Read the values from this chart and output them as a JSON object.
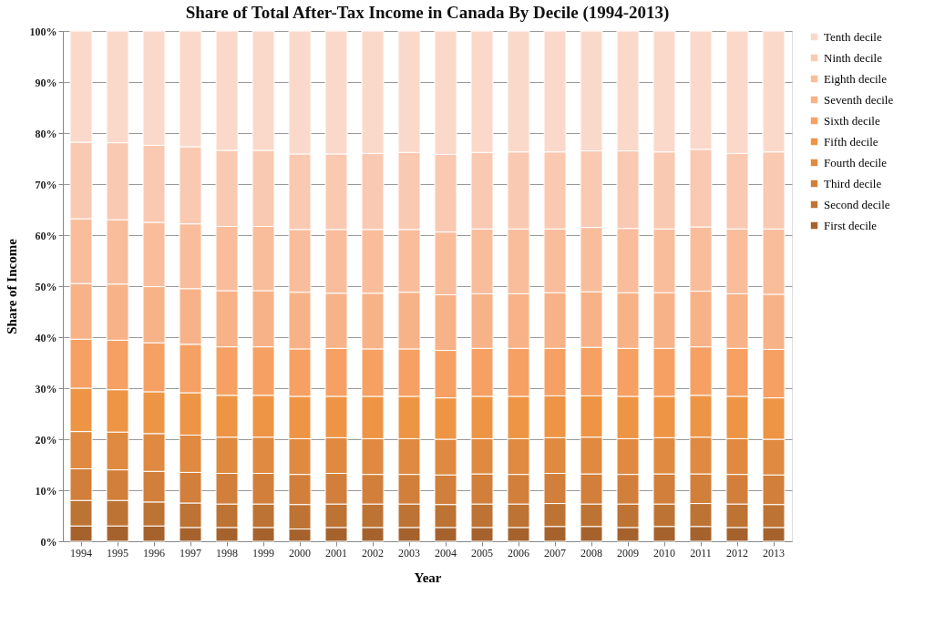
{
  "chart_data": {
    "type": "bar",
    "stacked": true,
    "title": "Share of  Total After-Tax Income in Canada By Decile (1994-2013)",
    "xlabel": "Year",
    "ylabel": "Share of Income",
    "categories": [
      "1994",
      "1995",
      "1996",
      "1997",
      "1998",
      "1999",
      "2000",
      "2001",
      "2002",
      "2003",
      "2004",
      "2005",
      "2006",
      "2007",
      "2008",
      "2009",
      "2010",
      "2011",
      "2012",
      "2013"
    ],
    "ylim": [
      0,
      100
    ],
    "yticks": [
      {
        "value": 0,
        "label": "0%"
      },
      {
        "value": 10,
        "label": "10%"
      },
      {
        "value": 20,
        "label": "20%"
      },
      {
        "value": 30,
        "label": "30%"
      },
      {
        "value": 40,
        "label": "40%"
      },
      {
        "value": 50,
        "label": "50%"
      },
      {
        "value": 60,
        "label": "60%"
      },
      {
        "value": 70,
        "label": "70%"
      },
      {
        "value": 80,
        "label": "80%"
      },
      {
        "value": 90,
        "label": "90%"
      },
      {
        "value": 100,
        "label": "100%"
      }
    ],
    "grid": "y",
    "legend": "right",
    "series": [
      {
        "name": "First decile",
        "color": "#a6622d",
        "values": [
          3.0,
          3.0,
          3.0,
          2.7,
          2.7,
          2.7,
          2.4,
          2.7,
          2.7,
          2.7,
          2.7,
          2.7,
          2.7,
          2.9,
          2.9,
          2.7,
          2.9,
          2.9,
          2.7,
          2.7
        ]
      },
      {
        "name": "Second decile",
        "color": "#bd7333",
        "values": [
          5.0,
          5.0,
          4.7,
          4.8,
          4.6,
          4.6,
          4.8,
          4.6,
          4.6,
          4.6,
          4.5,
          4.6,
          4.6,
          4.5,
          4.4,
          4.6,
          4.4,
          4.5,
          4.6,
          4.5
        ]
      },
      {
        "name": "Third decile",
        "color": "#d27f3b",
        "values": [
          6.2,
          6.0,
          6.0,
          6.0,
          6.0,
          6.0,
          5.9,
          6.0,
          5.8,
          5.8,
          5.8,
          5.9,
          5.8,
          5.9,
          5.9,
          5.8,
          5.9,
          5.8,
          5.8,
          5.8
        ]
      },
      {
        "name": "Fourth decile",
        "color": "#df8a40",
        "values": [
          7.3,
          7.4,
          7.4,
          7.3,
          7.1,
          7.1,
          7.0,
          7.0,
          7.0,
          7.0,
          7.0,
          6.9,
          7.0,
          7.0,
          7.2,
          7.0,
          7.1,
          7.2,
          7.0,
          7.0
        ]
      },
      {
        "name": "Fifth decile",
        "color": "#ee9545",
        "values": [
          8.5,
          8.3,
          8.2,
          8.3,
          8.2,
          8.2,
          8.3,
          8.1,
          8.3,
          8.3,
          8.1,
          8.3,
          8.3,
          8.2,
          8.1,
          8.3,
          8.1,
          8.2,
          8.3,
          8.1
        ]
      },
      {
        "name": "Sixth decile",
        "color": "#f6a064",
        "values": [
          9.6,
          9.7,
          9.6,
          9.5,
          9.5,
          9.5,
          9.3,
          9.4,
          9.3,
          9.3,
          9.3,
          9.4,
          9.4,
          9.3,
          9.5,
          9.4,
          9.4,
          9.5,
          9.4,
          9.5
        ]
      },
      {
        "name": "Seventh decile",
        "color": "#f8b287",
        "values": [
          10.9,
          11.0,
          11.0,
          10.9,
          11.0,
          11.0,
          11.1,
          10.8,
          10.9,
          11.1,
          10.9,
          10.7,
          10.7,
          10.9,
          10.9,
          10.9,
          10.9,
          10.9,
          10.7,
          10.8
        ]
      },
      {
        "name": "Eighth decile",
        "color": "#f9bd9c",
        "values": [
          12.7,
          12.6,
          12.6,
          12.7,
          12.6,
          12.6,
          12.3,
          12.5,
          12.5,
          12.3,
          12.3,
          12.7,
          12.7,
          12.5,
          12.6,
          12.6,
          12.5,
          12.6,
          12.7,
          12.8
        ]
      },
      {
        "name": "Ninth decile",
        "color": "#fac9b1",
        "values": [
          15.0,
          15.1,
          15.1,
          15.1,
          14.9,
          14.9,
          14.8,
          14.8,
          14.9,
          15.1,
          15.2,
          15.0,
          15.1,
          15.1,
          15.0,
          15.2,
          15.1,
          15.2,
          14.8,
          15.1
        ]
      },
      {
        "name": "Tenth decile",
        "color": "#fbd9ca",
        "values": [
          21.8,
          21.9,
          22.4,
          22.7,
          23.4,
          23.4,
          24.1,
          24.1,
          24.0,
          23.8,
          24.2,
          23.8,
          23.7,
          23.7,
          23.5,
          23.5,
          23.7,
          23.2,
          24.0,
          23.7
        ]
      }
    ]
  }
}
